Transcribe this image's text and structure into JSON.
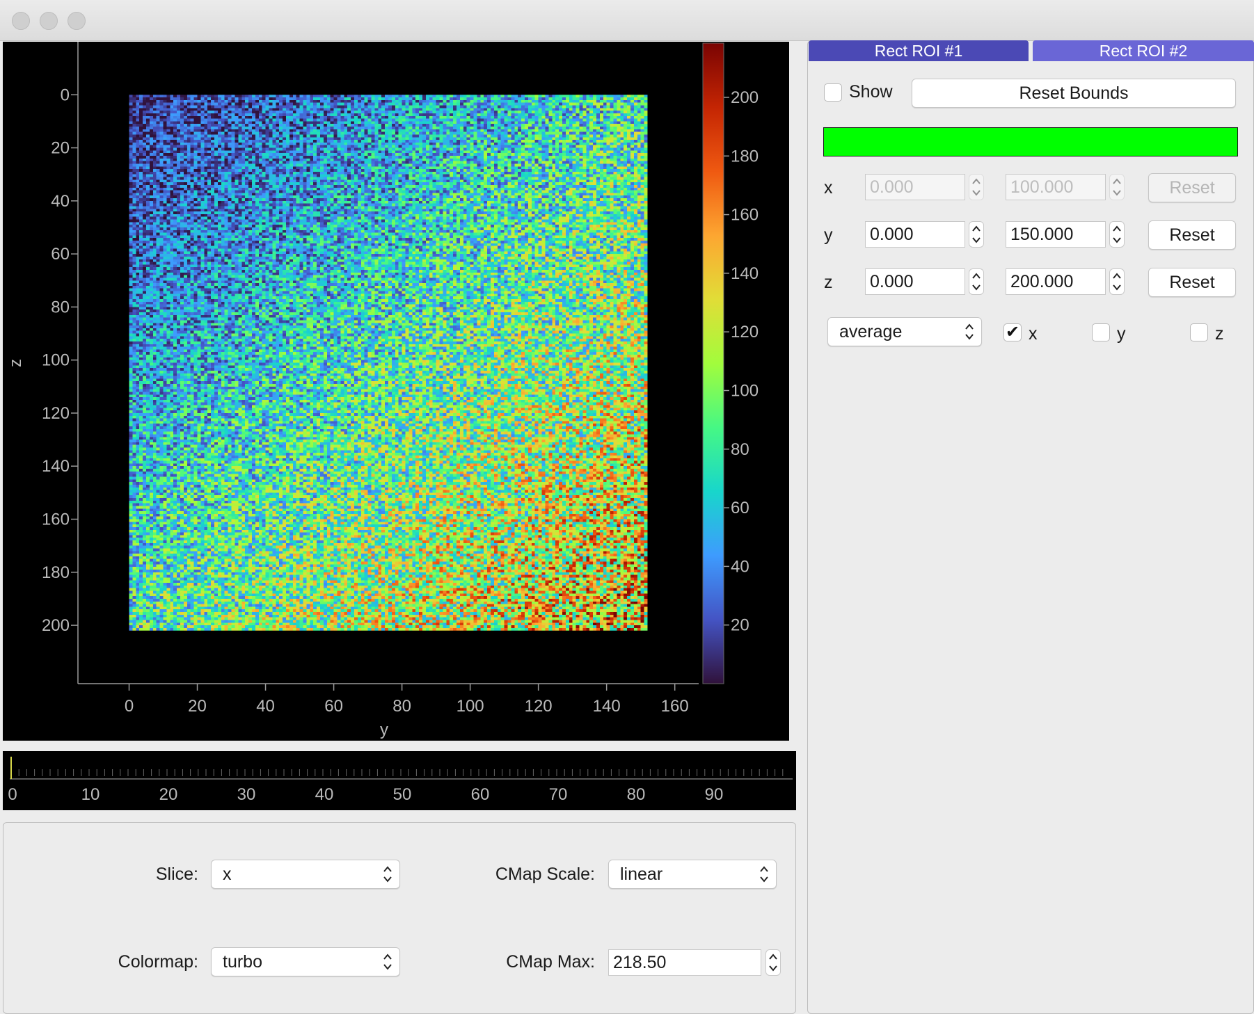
{
  "window": {
    "title": ""
  },
  "plot": {
    "title": "",
    "xlabel": "y",
    "ylabel": "z",
    "x_ticks": [
      "0",
      "20",
      "40",
      "60",
      "80",
      "100",
      "120",
      "140",
      "160"
    ],
    "y_ticks": [
      "0",
      "20",
      "40",
      "60",
      "80",
      "100",
      "120",
      "140",
      "160",
      "180",
      "200"
    ],
    "colorbar_ticks": [
      "20",
      "40",
      "60",
      "80",
      "100",
      "120",
      "140",
      "160",
      "180",
      "200"
    ]
  },
  "chart_data": {
    "type": "heatmap",
    "title": "",
    "xlabel": "y",
    "ylabel": "z",
    "xlim": [
      -15,
      167
    ],
    "ylim": [
      222,
      -20
    ],
    "image_extent": {
      "x": [
        0,
        152
      ],
      "y": [
        0,
        202
      ]
    },
    "colormap": "turbo",
    "clim": [
      0,
      218.5
    ],
    "colorbar_ticks": [
      20,
      40,
      60,
      80,
      100,
      120,
      140,
      160,
      180,
      200
    ],
    "description_values": {
      "low_corner": "top-left",
      "high_corner": "bottom-right"
    }
  },
  "slider": {
    "ticks": [
      "0",
      "10",
      "20",
      "30",
      "40",
      "50",
      "60",
      "70",
      "80",
      "90"
    ],
    "value": 0,
    "min": 0,
    "max": 99
  },
  "controls": {
    "slice_label": "Slice:",
    "slice_value": "x",
    "cmap_scale_label": "CMap Scale:",
    "cmap_scale_value": "linear",
    "colormap_label": "Colormap:",
    "colormap_value": "turbo",
    "cmap_max_label": "CMap Max:",
    "cmap_max_value": "218.50"
  },
  "roi": {
    "tabs": [
      {
        "label": "Rect ROI #1",
        "color": "#4b49b5"
      },
      {
        "label": "Rect ROI #2",
        "color": "#6a66d6"
      }
    ],
    "show_label": "Show",
    "show_checked": false,
    "reset_bounds_label": "Reset Bounds",
    "color_swatch": "#00ff00",
    "rows": [
      {
        "axis": "x",
        "min": "0.000",
        "max": "100.000",
        "reset": "Reset",
        "enabled": false
      },
      {
        "axis": "y",
        "min": "0.000",
        "max": "150.000",
        "reset": "Reset",
        "enabled": true
      },
      {
        "axis": "z",
        "min": "0.000",
        "max": "200.000",
        "reset": "Reset",
        "enabled": true
      }
    ],
    "reduce_value": "average",
    "axes_checks": [
      {
        "label": "x",
        "checked": true
      },
      {
        "label": "y",
        "checked": false
      },
      {
        "label": "z",
        "checked": false
      }
    ]
  }
}
